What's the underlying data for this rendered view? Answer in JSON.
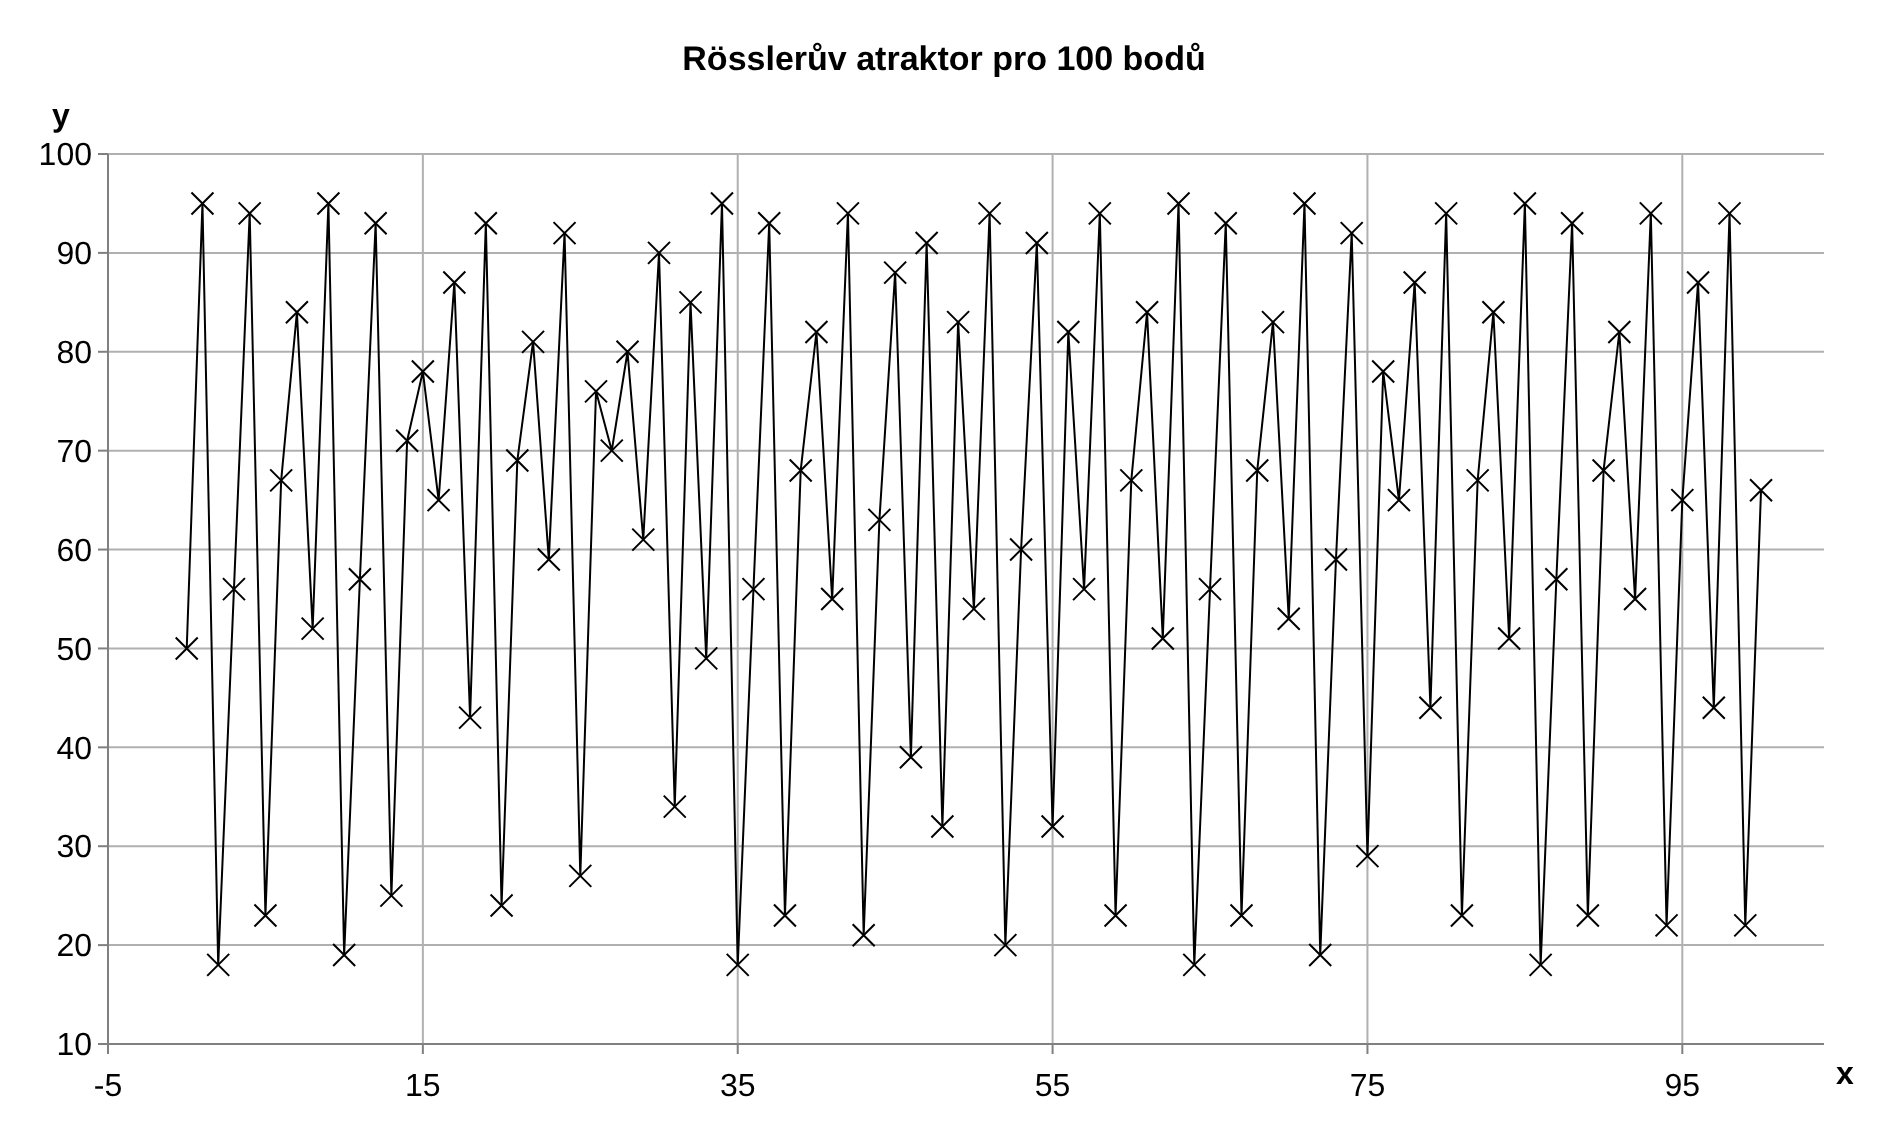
{
  "chart_data": {
    "type": "line",
    "title": "Rösslerův atraktor pro 100 bodů",
    "xlabel": "x",
    "ylabel": "y",
    "x": [
      0,
      1,
      2,
      3,
      4,
      5,
      6,
      7,
      8,
      9,
      10,
      11,
      12,
      13,
      14,
      15,
      16,
      17,
      18,
      19,
      20,
      21,
      22,
      23,
      24,
      25,
      26,
      27,
      28,
      29,
      30,
      31,
      32,
      33,
      34,
      35,
      36,
      37,
      38,
      39,
      40,
      41,
      42,
      43,
      44,
      45,
      46,
      47,
      48,
      49,
      50,
      51,
      52,
      53,
      54,
      55,
      56,
      57,
      58,
      59,
      60,
      61,
      62,
      63,
      64,
      65,
      66,
      67,
      68,
      69,
      70,
      71,
      72,
      73,
      74,
      75,
      76,
      77,
      78,
      79,
      80,
      81,
      82,
      83,
      84,
      85,
      86,
      87,
      88,
      89,
      90,
      91,
      92,
      93,
      94,
      95,
      96,
      97,
      98,
      99,
      100
    ],
    "series": [
      {
        "color": "#000000",
        "values": [
          50,
          95,
          18,
          56,
          94,
          23,
          67,
          84,
          52,
          95,
          19,
          57,
          93,
          25,
          71,
          78,
          65,
          87,
          43,
          93,
          24,
          69,
          81,
          59,
          92,
          27,
          76,
          70,
          80,
          61,
          90,
          34,
          85,
          49,
          95,
          18,
          56,
          93,
          23,
          68,
          82,
          55,
          94,
          21,
          63,
          88,
          39,
          91,
          32,
          83,
          54,
          94,
          20,
          60,
          91,
          32,
          82,
          56,
          94,
          23,
          67,
          84,
          51,
          95,
          18,
          56,
          93,
          23,
          68,
          83,
          53,
          95,
          19,
          59,
          92,
          29,
          78,
          65,
          87,
          44,
          94,
          23,
          67,
          84,
          51,
          95,
          18,
          57,
          93,
          23,
          68,
          82,
          55,
          94,
          22,
          65,
          87,
          44,
          94,
          22,
          66
        ]
      }
    ],
    "xlim": [
      -5,
      104
    ],
    "xticks": [
      -5,
      15,
      35,
      55,
      75,
      95
    ],
    "ylim": [
      10,
      100
    ],
    "yticks": [
      10,
      20,
      30,
      40,
      50,
      60,
      70,
      80,
      90,
      100
    ],
    "grid": true,
    "marker": "cross",
    "line_style": "solid"
  }
}
